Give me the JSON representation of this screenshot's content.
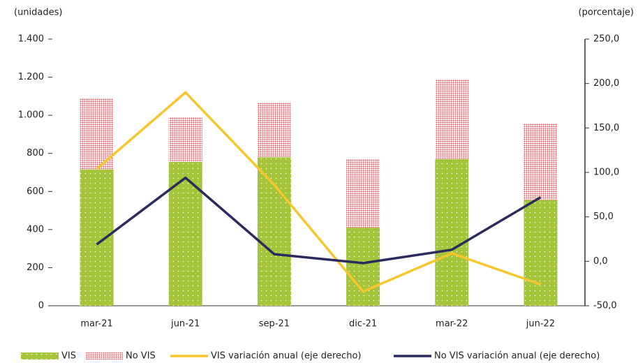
{
  "chart_data": {
    "type": "bar_line",
    "y_label": "(unidades)",
    "y2_label": "(porcentaje)",
    "categories": [
      "mar-21",
      "jun-21",
      "sep-21",
      "dic-21",
      "mar-22",
      "jun-22"
    ],
    "stacked": true,
    "series": [
      {
        "name": "VIS",
        "color": "#a5c43a",
        "type": "bar",
        "values": [
          715,
          755,
          780,
          410,
          770,
          555
        ]
      },
      {
        "name": "No VIS",
        "color": "#e8424a",
        "type": "bar",
        "values": [
          375,
          235,
          285,
          360,
          420,
          400
        ]
      },
      {
        "name": "VIS variación anual (eje derecho)",
        "color": "#f6c62e",
        "type": "line",
        "axis": "y2",
        "values": [
          104,
          190,
          86,
          -34,
          9,
          -26
        ]
      },
      {
        "name": "No VIS variación anual (eje derecho)",
        "color": "#2c2a5e",
        "type": "line",
        "axis": "y2",
        "values": [
          19,
          94,
          8,
          -2,
          13,
          72
        ]
      }
    ],
    "ylim": [
      0,
      1400
    ],
    "yticks": [
      0,
      200,
      400,
      600,
      800,
      {
        "value": 1000,
        "label": "1.000"
      },
      {
        "value": 1200,
        "label": "1.200"
      },
      {
        "value": 1400,
        "label": "1.400"
      }
    ],
    "y2lim": [
      -50,
      250
    ],
    "y2ticks": [
      {
        "value": -50,
        "label": "-50,0"
      },
      {
        "value": 0,
        "label": "0,0"
      },
      {
        "value": 50,
        "label": "50,0"
      },
      {
        "value": 100,
        "label": "100,0"
      },
      {
        "value": 150,
        "label": "150,0"
      },
      {
        "value": 200,
        "label": "200,0"
      },
      {
        "value": 250,
        "label": "250,0"
      }
    ],
    "grid": false,
    "legend": "bottom"
  }
}
